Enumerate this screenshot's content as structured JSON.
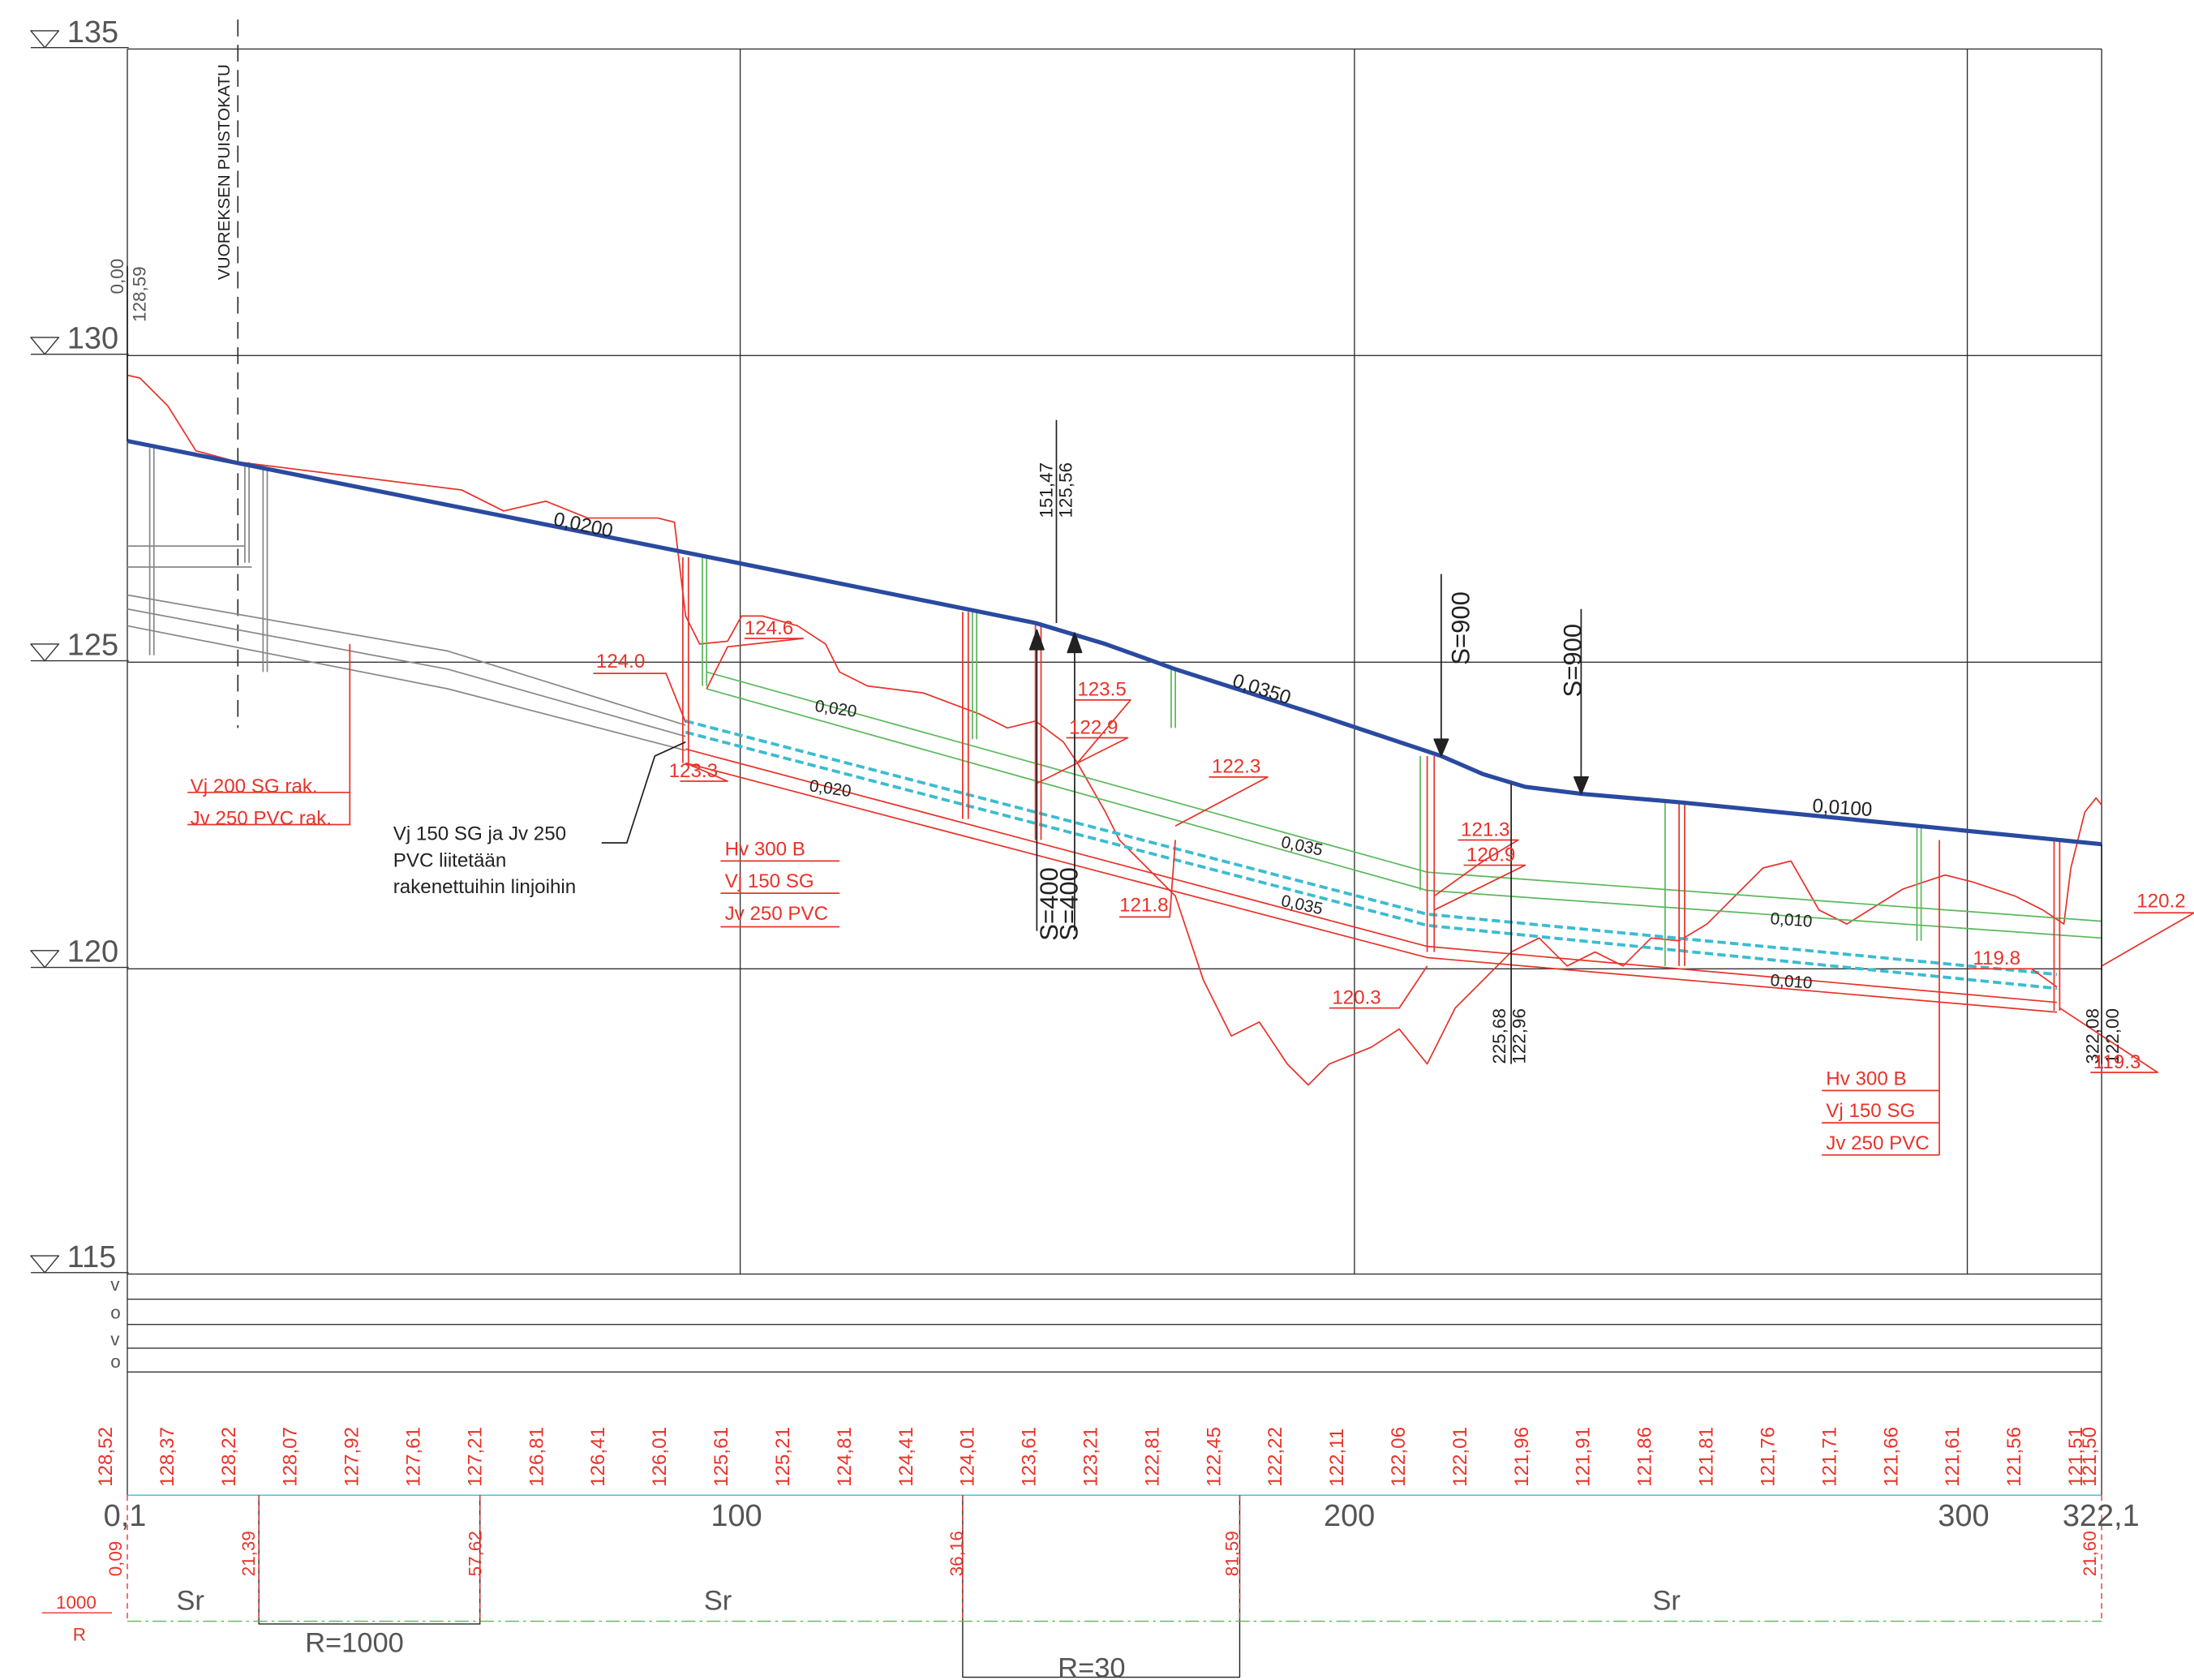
{
  "elevation_marks": [
    "135",
    "130",
    "125",
    "120",
    "115"
  ],
  "road_name": "VUOREKSEN PUISTOKATU",
  "start_point": [
    "0,00",
    "128,59"
  ],
  "vertex_points": [
    [
      "151,47",
      "125,56"
    ],
    [
      "225,68",
      "122,96"
    ],
    [
      "322,08",
      "122,00"
    ]
  ],
  "curves": [
    "S=400",
    "S=400",
    "S=900",
    "S=900"
  ],
  "road_slopes": [
    "0,0200",
    "0,0350",
    "0,0100"
  ],
  "pipe_slopes": [
    "0,020",
    "0,020",
    "0,035",
    "0,035",
    "0,010",
    "0,010"
  ],
  "levels": [
    "124.6",
    "124.0",
    "123.3",
    "123.5",
    "122.9",
    "122.3",
    "121.8",
    "121.3",
    "120.9",
    "120.3",
    "119.8",
    "119.3",
    "120.2"
  ],
  "notes": {
    "existing": [
      "Vj 200 SG rak.",
      "Jv 250 PVC rak."
    ],
    "connection": [
      "Vj 150 SG ja Jv 250",
      "PVC liitetään",
      "rakenettuihin linjoihin"
    ],
    "pipes_left": [
      "Hv 300 B",
      "Vj 150 SG",
      "Jv 250 PVC"
    ],
    "pipes_right": [
      "Hv 300 B",
      "Vj 150 SG",
      "Jv 250 PVC"
    ]
  },
  "band_labels": [
    "v",
    "o",
    "v",
    "o"
  ],
  "ground_elevations": [
    "128,52",
    "128,37",
    "128,22",
    "128,07",
    "127,92",
    "127,61",
    "127,21",
    "126,81",
    "126,41",
    "126,01",
    "125,61",
    "125,21",
    "124,81",
    "124,41",
    "124,01",
    "123,61",
    "123,21",
    "122,81",
    "122,45",
    "122,22",
    "122,11",
    "122,06",
    "122,01",
    "121,96",
    "121,91",
    "121,86",
    "121,81",
    "121,76",
    "121,71",
    "121,66",
    "121,61",
    "121,56",
    "121,51",
    "121,50"
  ],
  "stations": [
    "0,1",
    "100",
    "200",
    "300",
    "322,1"
  ],
  "curve_stations": [
    "0,09",
    "21,39",
    "57,62",
    "36,16",
    "81,59",
    "21,60"
  ],
  "alignment": [
    "Sr",
    "Sr",
    "Sr"
  ],
  "radii": [
    "R=1000",
    "R=30"
  ],
  "radius_legend": [
    "1000",
    "R"
  ]
}
